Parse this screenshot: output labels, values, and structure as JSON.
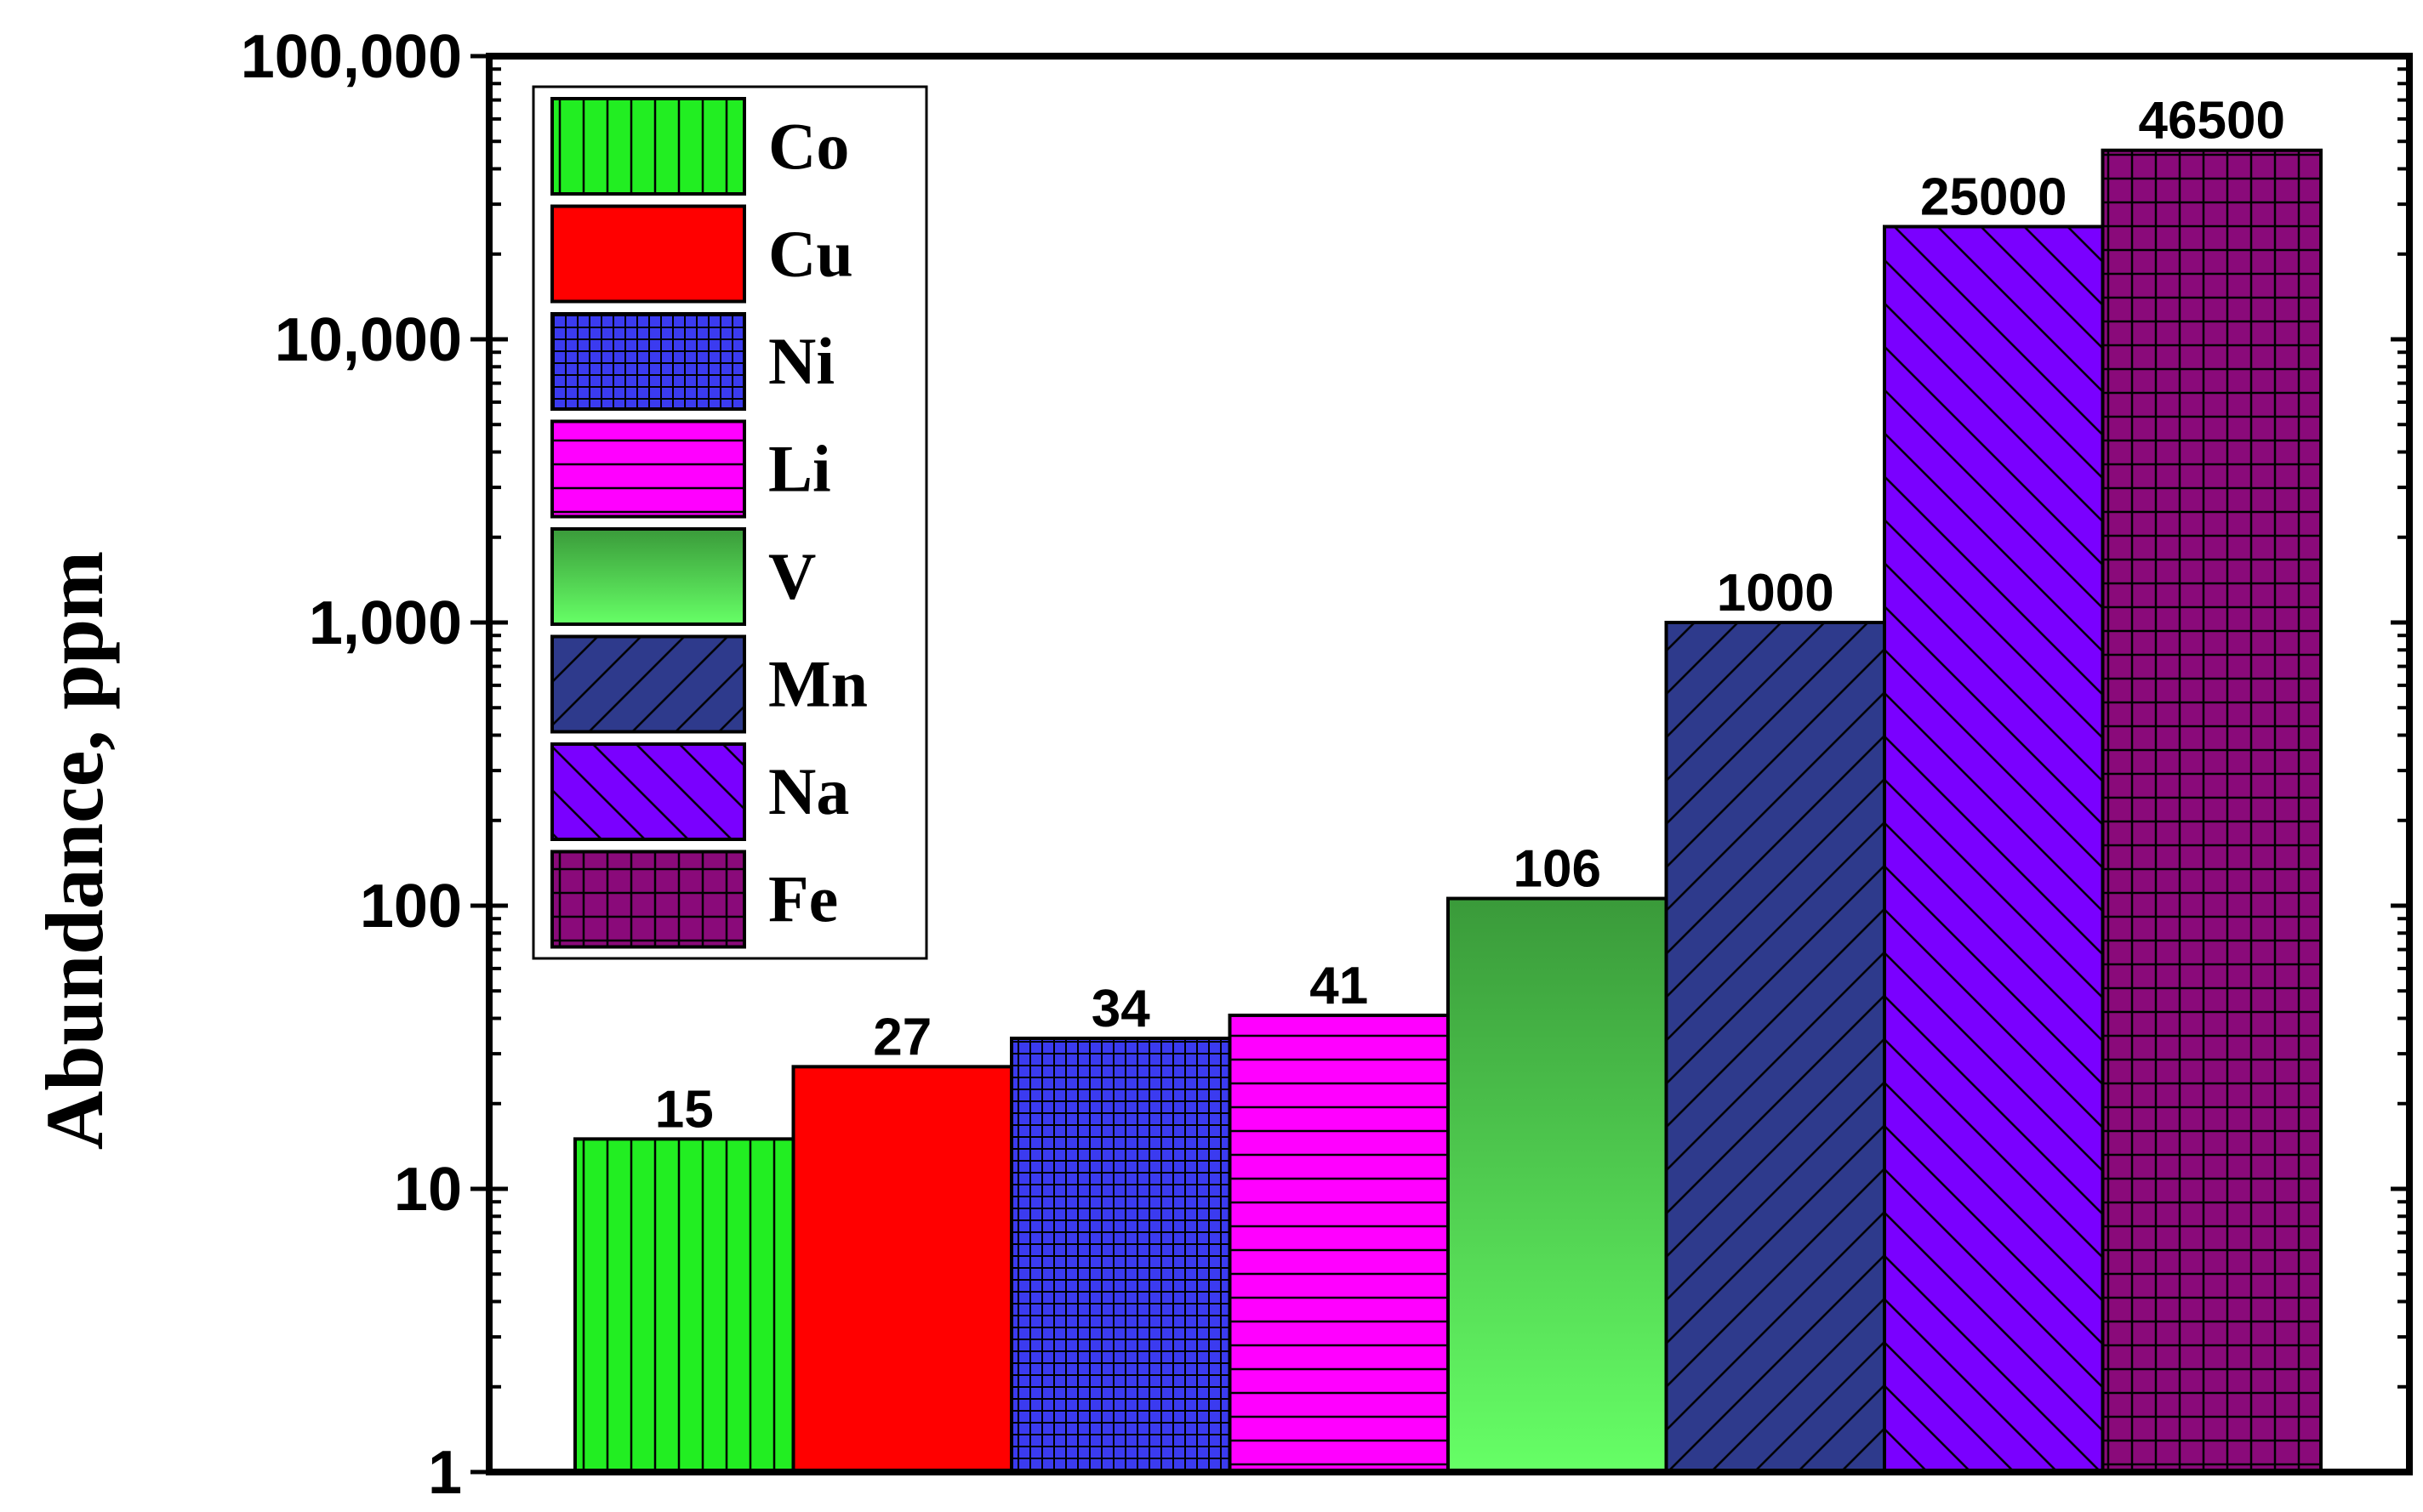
{
  "chart_data": {
    "type": "bar",
    "title": "",
    "xlabel": "",
    "ylabel": "Abundance, ppm",
    "yscale": "log",
    "ylim": [
      1,
      100000
    ],
    "yticks": [
      {
        "value": 1,
        "label": "1"
      },
      {
        "value": 10,
        "label": "10"
      },
      {
        "value": 100,
        "label": "100"
      },
      {
        "value": 1000,
        "label": "1,000"
      },
      {
        "value": 10000,
        "label": "10,000"
      },
      {
        "value": 100000,
        "label": "100,000"
      }
    ],
    "legend_position": "top-left",
    "categories": [
      "Co",
      "Cu",
      "Ni",
      "Li",
      "V",
      "Mn",
      "Na",
      "Fe"
    ],
    "values": [
      15,
      27,
      34,
      41,
      106,
      1000,
      25000,
      46500
    ],
    "value_labels": [
      "15",
      "27",
      "34",
      "41",
      "106",
      "1000",
      "25000",
      "46500"
    ],
    "series_styles": [
      {
        "name": "Co",
        "color": "#22ee22",
        "pattern": "vertical-lines"
      },
      {
        "name": "Cu",
        "color": "#ff0000",
        "pattern": "solid"
      },
      {
        "name": "Ni",
        "color": "#3b3bf0",
        "pattern": "fine-grid"
      },
      {
        "name": "Li",
        "color": "#ff00ff",
        "pattern": "horizontal-lines"
      },
      {
        "name": "V",
        "color": "#3a9a3a",
        "color2": "#66ff66",
        "pattern": "vertical-gradient"
      },
      {
        "name": "Mn",
        "color": "#2e3a8c",
        "pattern": "diagonal-forward"
      },
      {
        "name": "Na",
        "color": "#7a00ff",
        "pattern": "diagonal-back"
      },
      {
        "name": "Fe",
        "color": "#8a0a7a",
        "pattern": "coarse-grid"
      }
    ]
  }
}
